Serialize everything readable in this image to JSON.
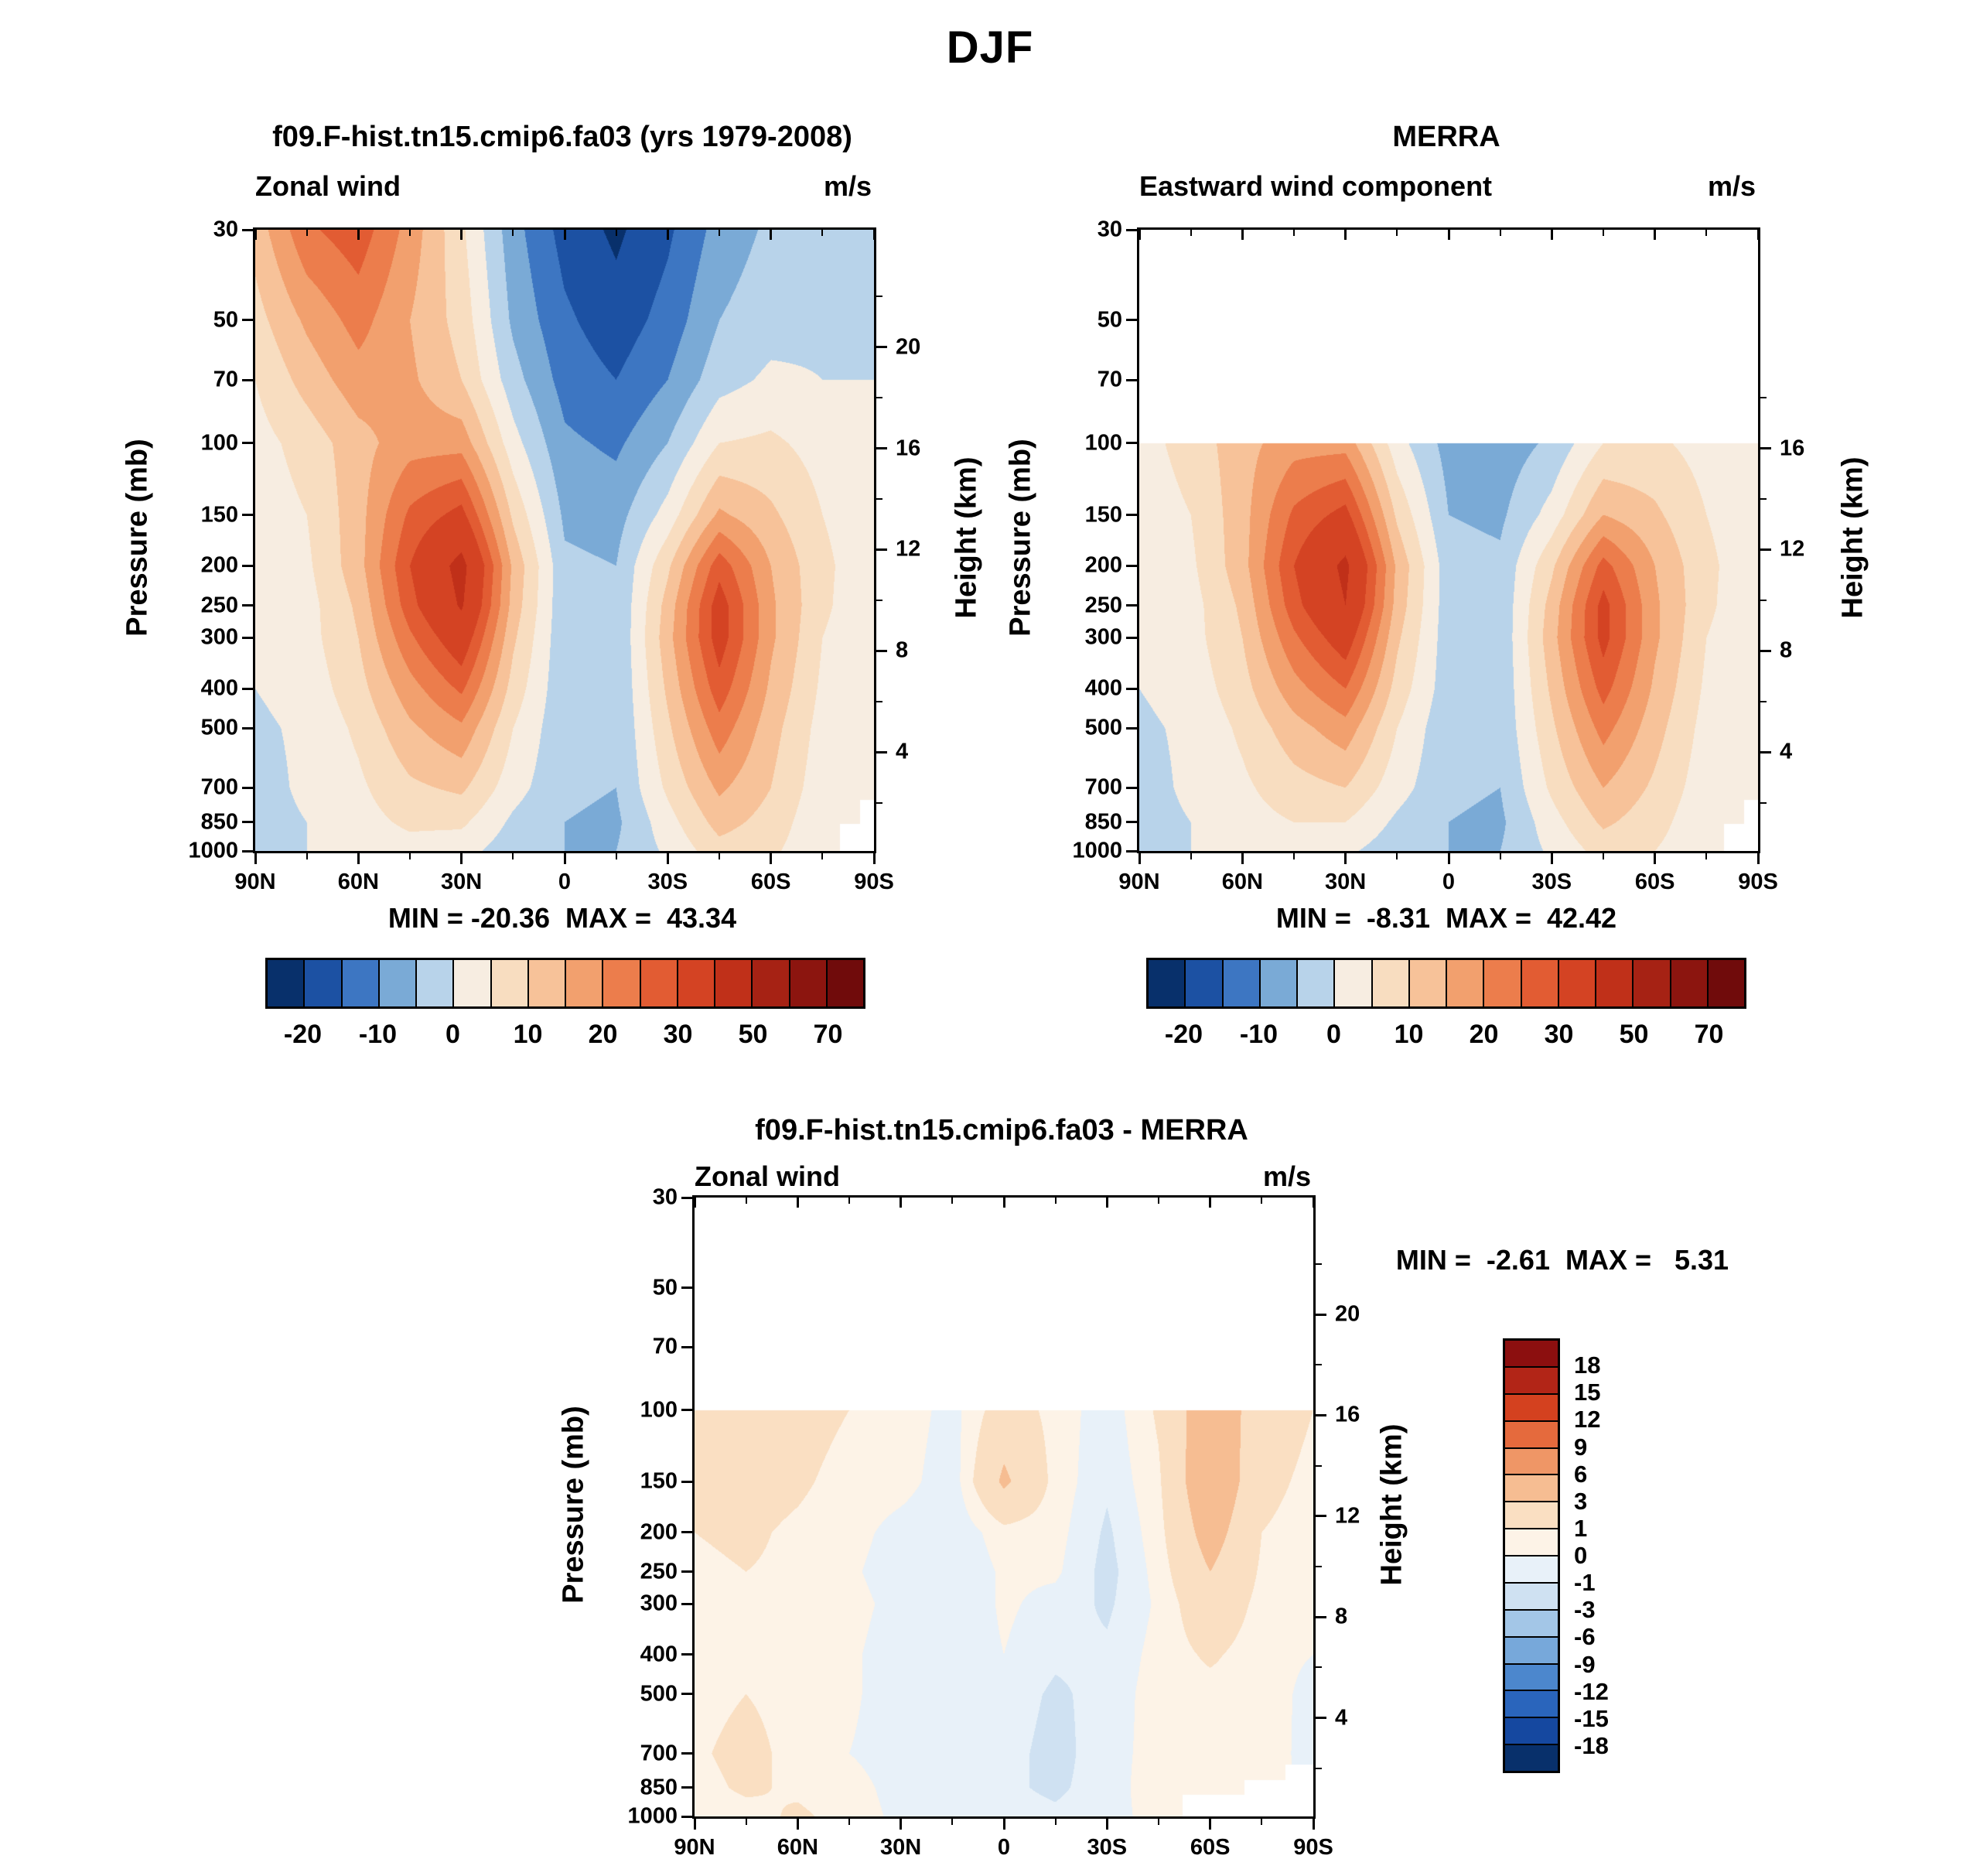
{
  "title": "DJF",
  "colors": {
    "levels_main": [
      -20,
      -15,
      -10,
      -5,
      0,
      5,
      10,
      15,
      20,
      25,
      30,
      40,
      50,
      60,
      70
    ],
    "palette_main": [
      "#08306b",
      "#1c51a3",
      "#3d76c2",
      "#7aaad6",
      "#b8d3ea",
      "#f7ede1",
      "#f8ddc0",
      "#f7c299",
      "#f2a06e",
      "#ec7d4c",
      "#e25c33",
      "#d44323",
      "#c03019",
      "#a62214",
      "#8c150f",
      "#700b0b"
    ],
    "levels_diff": [
      -18,
      -15,
      -12,
      -9,
      -6,
      -3,
      -1,
      0,
      1,
      3,
      6,
      9,
      12,
      15,
      18
    ],
    "palette_diff": [
      "#08306b",
      "#1548a0",
      "#2a65bc",
      "#4c87cd",
      "#77a8da",
      "#a3c6e7",
      "#cfe1f2",
      "#e8f1f9",
      "#fdf3e7",
      "#fadfc2",
      "#f6bd92",
      "#ef9666",
      "#e56a3d",
      "#d4411f",
      "#b22517",
      "#8c0f0f"
    ]
  },
  "colorbar_main_labels": [
    "-20",
    "-10",
    "0",
    "10",
    "20",
    "30",
    "50",
    "70"
  ],
  "colorbar_diff_labels": [
    "18",
    "15",
    "12",
    "9",
    "6",
    "3",
    "1",
    "0",
    "-1",
    "-3",
    "-6",
    "-9",
    "-12",
    "-15",
    "-18"
  ],
  "chart_data": [
    {
      "id": "model",
      "type": "heatmap",
      "title": "f09.F-hist.tn15.cmip6.fa03 (yrs 1979-2008)",
      "var_label": "Zonal wind",
      "units": "m/s",
      "ylabel": "Pressure (mb)",
      "y2label": "Height (km)",
      "stats": "MIN = -20.36  MAX =  43.34",
      "min": -20.36,
      "max": 43.34,
      "scale": "main",
      "mask": "small",
      "p_top": 30,
      "p_bot": 1000,
      "x_tick_labels": [
        "90N",
        "60N",
        "30N",
        "0",
        "30S",
        "60S",
        "90S"
      ],
      "x_major_deg": [
        90,
        60,
        30,
        0,
        -30,
        -60,
        -90
      ],
      "x_minor_deg": [
        75,
        45,
        15,
        -15,
        -45,
        -75
      ],
      "y_ticks": [
        30,
        50,
        70,
        100,
        150,
        200,
        250,
        300,
        400,
        500,
        700,
        850,
        1000
      ],
      "y2_ticks": [
        20,
        16,
        12,
        8,
        4
      ],
      "y2_minor": [
        2,
        6,
        10,
        14,
        18,
        22
      ],
      "lat": [
        90,
        75,
        60,
        45,
        30,
        15,
        0,
        -15,
        -30,
        -45,
        -60,
        -75,
        -90
      ],
      "pressure": [
        30,
        50,
        70,
        100,
        150,
        200,
        250,
        300,
        400,
        500,
        700,
        850,
        1000
      ],
      "values": [
        [
          12,
          24,
          28,
          18,
          6,
          -8,
          -17,
          -21,
          -16,
          -8,
          -4,
          -3,
          -2
        ],
        [
          8,
          16,
          22,
          15,
          8,
          -6,
          -14,
          -18,
          -13,
          -5,
          -2,
          -1,
          -1
        ],
        [
          5,
          12,
          18,
          16,
          10,
          -3,
          -12,
          -15,
          -10,
          -2,
          1,
          0,
          0
        ],
        [
          3,
          7,
          13,
          18,
          18,
          2,
          -9,
          -11,
          -5,
          5,
          6,
          3,
          1
        ],
        [
          2,
          5,
          13,
          26,
          32,
          9,
          -6,
          -7,
          2,
          16,
          11,
          5,
          2
        ],
        [
          1,
          4,
          13,
          30,
          43,
          14,
          -4,
          -5,
          9,
          28,
          15,
          6,
          2
        ],
        [
          1,
          3,
          11,
          28,
          41,
          13,
          -4,
          -5,
          12,
          33,
          16,
          6,
          1
        ],
        [
          0,
          3,
          10,
          24,
          35,
          11,
          -4,
          -5,
          13,
          33,
          16,
          5,
          1
        ],
        [
          0,
          2,
          8,
          18,
          26,
          8,
          -4,
          -5,
          11,
          28,
          14,
          4,
          0
        ],
        [
          -1,
          1,
          6,
          14,
          19,
          5,
          -4,
          -5,
          9,
          23,
          12,
          3,
          0
        ],
        [
          -2,
          1,
          4,
          9,
          11,
          2,
          -4,
          -5,
          6,
          16,
          10,
          2,
          0
        ],
        [
          -2,
          0,
          3,
          6,
          6,
          -1,
          -5,
          -6,
          3,
          12,
          8,
          1,
          0
        ],
        [
          -1,
          0,
          2,
          3,
          2,
          -3,
          -5,
          -5,
          1,
          8,
          6,
          1,
          0
        ]
      ]
    },
    {
      "id": "merra",
      "type": "heatmap",
      "title": "MERRA",
      "var_label": "Eastward wind component",
      "units": "m/s",
      "ylabel": "Pressure (mb)",
      "y2label": "Height (km)",
      "stats": "MIN =  -8.31  MAX =  42.42",
      "min": -8.31,
      "max": 42.42,
      "scale": "main",
      "mask": "small",
      "p_top": 30,
      "p_bot": 1000,
      "x_tick_labels": [
        "90N",
        "60N",
        "30N",
        "0",
        "30S",
        "60S",
        "90S"
      ],
      "x_major_deg": [
        90,
        60,
        30,
        0,
        -30,
        -60,
        -90
      ],
      "x_minor_deg": [
        75,
        45,
        15,
        -15,
        -45,
        -75
      ],
      "y_ticks": [
        30,
        50,
        70,
        100,
        150,
        200,
        250,
        300,
        400,
        500,
        700,
        850,
        1000
      ],
      "y2_ticks": [
        16,
        12,
        8,
        4
      ],
      "y2_minor": [
        2,
        6,
        10,
        14,
        18
      ],
      "lat": [
        90,
        75,
        60,
        45,
        30,
        15,
        0,
        -15,
        -30,
        -45,
        -60,
        -75,
        -90
      ],
      "pressure": [
        100,
        150,
        200,
        250,
        300,
        400,
        500,
        700,
        850,
        1000
      ],
      "values": [
        [
          3,
          7,
          13,
          18,
          18,
          2,
          -7,
          -8,
          -4,
          5,
          6,
          3,
          1
        ],
        [
          2,
          5,
          13,
          26,
          32,
          9,
          -5,
          -6,
          2,
          15,
          11,
          5,
          2
        ],
        [
          1,
          4,
          13,
          30,
          42,
          14,
          -3,
          -4,
          9,
          27,
          15,
          6,
          2
        ],
        [
          1,
          3,
          11,
          28,
          40,
          13,
          -3,
          -4,
          12,
          32,
          16,
          6,
          1
        ],
        [
          0,
          3,
          10,
          24,
          34,
          11,
          -3,
          -4,
          13,
          32,
          16,
          5,
          1
        ],
        [
          0,
          2,
          8,
          18,
          25,
          8,
          -3,
          -4,
          11,
          27,
          14,
          4,
          0
        ],
        [
          -1,
          1,
          6,
          13,
          18,
          5,
          -4,
          -4,
          9,
          22,
          12,
          3,
          0
        ],
        [
          -2,
          1,
          4,
          8,
          10,
          2,
          -4,
          -5,
          6,
          15,
          9,
          2,
          0
        ],
        [
          -2,
          0,
          3,
          5,
          5,
          -1,
          -5,
          -6,
          3,
          11,
          7,
          1,
          0
        ],
        [
          -1,
          0,
          2,
          2,
          1,
          -3,
          -5,
          -5,
          1,
          7,
          5,
          1,
          0
        ]
      ]
    },
    {
      "id": "difference",
      "type": "heatmap",
      "title": "f09.F-hist.tn15.cmip6.fa03 - MERRA",
      "var_label": "Zonal wind",
      "units": "m/s",
      "ylabel": "Pressure (mb)",
      "y2label": "Height (km)",
      "stats": "MIN =  -2.61  MAX =   5.31",
      "min": -2.61,
      "max": 5.31,
      "scale": "diff",
      "mask": "large",
      "p_top": 30,
      "p_bot": 1000,
      "x_tick_labels": [
        "90N",
        "60N",
        "30N",
        "0",
        "30S",
        "60S",
        "90S"
      ],
      "x_major_deg": [
        90,
        60,
        30,
        0,
        -30,
        -60,
        -90
      ],
      "x_minor_deg": [
        75,
        45,
        15,
        -15,
        -45,
        -75
      ],
      "y_ticks": [
        30,
        50,
        70,
        100,
        150,
        200,
        250,
        300,
        400,
        500,
        700,
        850,
        1000
      ],
      "y2_ticks": [
        20,
        16,
        12,
        8,
        4
      ],
      "y2_minor": [
        2,
        6,
        10,
        14,
        18,
        22
      ],
      "lat": [
        90,
        75,
        60,
        45,
        30,
        15,
        0,
        -15,
        -30,
        -45,
        -60,
        -75,
        -90
      ],
      "pressure": [
        100,
        150,
        200,
        250,
        300,
        400,
        500,
        700,
        850,
        1000
      ],
      "values": [
        [
          1.5,
          1.8,
          1.5,
          1.0,
          0.6,
          -0.4,
          1.8,
          0.6,
          -0.6,
          1.2,
          4.5,
          2.0,
          1.0
        ],
        [
          1.2,
          1.5,
          1.2,
          0.6,
          0.4,
          -0.6,
          3.4,
          0.6,
          -0.8,
          0.8,
          5.0,
          1.5,
          0.6
        ],
        [
          1.0,
          1.2,
          0.8,
          0.4,
          -0.4,
          -0.8,
          0.6,
          0.4,
          -1.2,
          0.6,
          4.0,
          1.0,
          0.4
        ],
        [
          0.8,
          1.0,
          0.8,
          0.2,
          -0.6,
          -1.0,
          0.2,
          0.2,
          -1.4,
          0.4,
          3.0,
          0.8,
          0.2
        ],
        [
          0.6,
          0.8,
          0.8,
          0.4,
          -0.4,
          -1.0,
          0.2,
          -0.4,
          -1.2,
          0.2,
          2.2,
          0.6,
          0.2
        ],
        [
          0.6,
          0.8,
          0.6,
          0.2,
          -0.6,
          -0.8,
          0.0,
          -0.8,
          -0.8,
          0.4,
          1.2,
          0.4,
          0.0
        ],
        [
          0.6,
          1.0,
          0.6,
          0.2,
          -0.6,
          -0.5,
          -0.4,
          -1.2,
          -0.6,
          0.5,
          0.6,
          0.6,
          -0.4
        ],
        [
          0.8,
          1.4,
          0.6,
          0.0,
          -0.5,
          -0.3,
          -0.6,
          -1.4,
          -0.4,
          0.4,
          0.6,
          0.8,
          -0.6
        ],
        [
          0.6,
          1.2,
          0.8,
          0.4,
          -0.4,
          -0.5,
          -0.8,
          -1.2,
          -0.5,
          0.6,
          0.8,
          0.6,
          -0.4
        ],
        [
          0.4,
          0.6,
          1.2,
          0.6,
          -0.3,
          -0.6,
          -0.6,
          -0.8,
          -0.4,
          0.4,
          0.6,
          0.4,
          0.0
        ]
      ]
    }
  ]
}
